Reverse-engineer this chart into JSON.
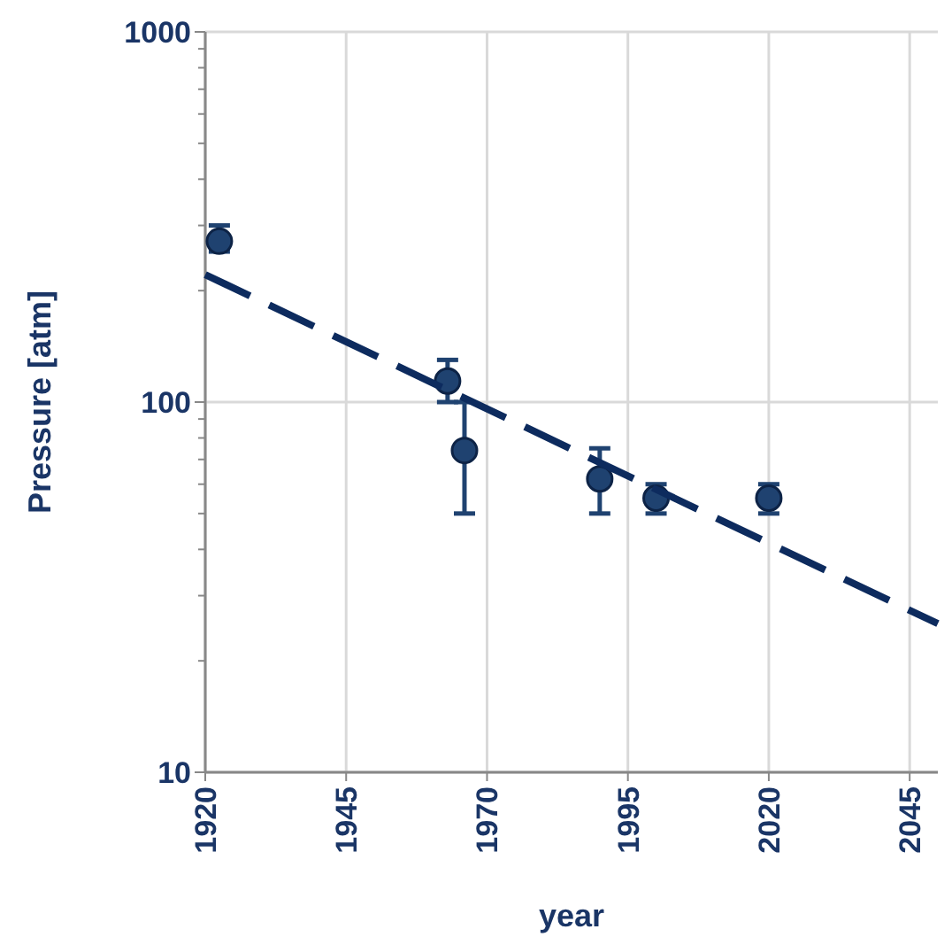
{
  "chart_data": {
    "type": "scatter",
    "xlabel": "year",
    "ylabel": "Pressure [atm]",
    "log": "y",
    "grid": true,
    "xlim": [
      1920,
      2050
    ],
    "xticks": [
      1920,
      1945,
      1970,
      1995,
      2020,
      2045
    ],
    "ylim": [
      10,
      1000
    ],
    "yticks": [
      10,
      {
        "value": 20,
        "label": null
      },
      {
        "value": 30,
        "label": null
      },
      {
        "value": 40,
        "label": null
      },
      {
        "value": 50,
        "label": null
      },
      {
        "value": 60,
        "label": null
      },
      {
        "value": 70,
        "label": null
      },
      {
        "value": 80,
        "label": null
      },
      {
        "value": 90,
        "label": null
      },
      100,
      {
        "value": 200,
        "label": null
      },
      {
        "value": 300,
        "label": null
      },
      {
        "value": 400,
        "label": null
      },
      {
        "value": 500,
        "label": null
      },
      {
        "value": 600,
        "label": null
      },
      {
        "value": 700,
        "label": null
      },
      {
        "value": 800,
        "label": null
      },
      {
        "value": 900,
        "label": null
      },
      1000
    ],
    "series": [
      {
        "color": "#1f4270",
        "marker": "circle",
        "x": [
          1922.5,
          1963,
          1966,
          1990,
          2000,
          2020
        ],
        "values": [
          272,
          114,
          74,
          62,
          55,
          55
        ],
        "errors": [
          [
            255,
            300
          ],
          [
            100,
            130
          ],
          [
            50,
            100
          ],
          [
            50,
            75
          ],
          [
            50,
            60
          ],
          [
            50,
            60
          ]
        ]
      },
      {
        "type": "line",
        "color": "#0d2b5e",
        "marker": "none",
        "line_style": "dashed",
        "x": [
          1920,
          2050
        ],
        "values": [
          221,
          25.2
        ]
      }
    ]
  }
}
